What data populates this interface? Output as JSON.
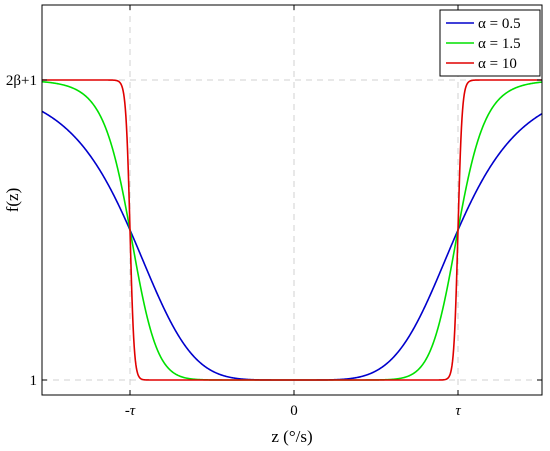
{
  "chart_data": {
    "type": "line",
    "title": "",
    "xlabel": "z (°/s)",
    "ylabel": "f(z)",
    "x_ticks": [
      {
        "value": -1,
        "label": "-τ"
      },
      {
        "value": 0,
        "label": "0"
      },
      {
        "value": 1,
        "label": "τ"
      }
    ],
    "y_ticks": [
      {
        "value": 1,
        "label": "1"
      },
      {
        "value": 3,
        "label": "2β+1"
      }
    ],
    "xlim": [
      -2,
      1.5
    ],
    "ylim": [
      0.9,
      3.5
    ],
    "grid": true,
    "legend_position": "top-right",
    "series": [
      {
        "name": "α = 0.5",
        "alpha": 0.5,
        "color": "#0000cc"
      },
      {
        "name": "α = 1.5",
        "alpha": 1.5,
        "color": "#00e000"
      },
      {
        "name": "α = 10",
        "alpha": 10,
        "color": "#e00000"
      }
    ]
  }
}
